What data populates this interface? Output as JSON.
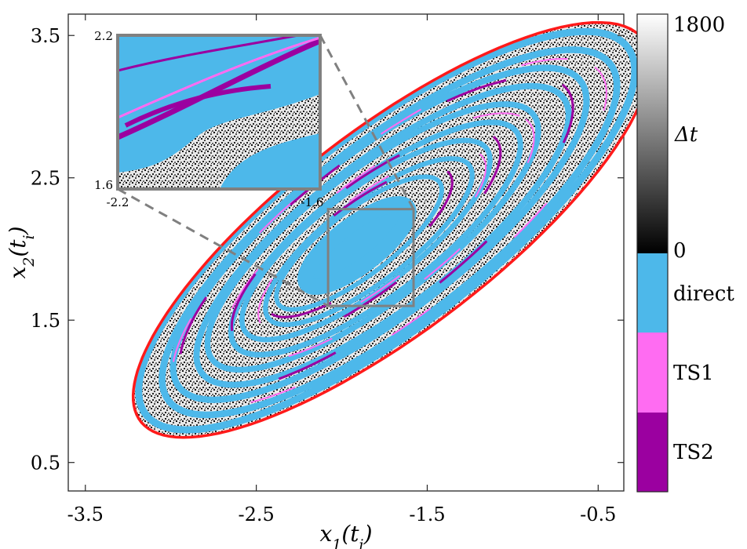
{
  "chart_data": {
    "type": "heatmap",
    "title": "",
    "xlabel": "x1(ti)",
    "ylabel": "x2(ti)",
    "xlim": [
      -3.6,
      -0.35
    ],
    "ylim": [
      0.3,
      3.65
    ],
    "x_ticks": [
      "-3.5",
      "-2.5",
      "-1.5",
      "-0.5"
    ],
    "y_ticks": [
      "0.5",
      "1.5",
      "2.5",
      "3.5"
    ],
    "grid": false,
    "colorbar": {
      "range_label_min": "0",
      "range_label_max": "1800",
      "label": "Δt",
      "categories": [
        "direct",
        "TS1",
        "TS2"
      ]
    },
    "inset": {
      "xlim": [
        -2.2,
        -1.6
      ],
      "ylim": [
        1.6,
        2.2
      ],
      "x_ticks": [
        "-2.2",
        "-1.6"
      ],
      "y_ticks": [
        "1.6",
        "2.2"
      ]
    },
    "colors": {
      "direct": "#4db8ea",
      "TS1": "#ff6cf2",
      "TS2": "#9b00a0",
      "boundary": "#ff1a1a",
      "box": "#808080"
    }
  }
}
